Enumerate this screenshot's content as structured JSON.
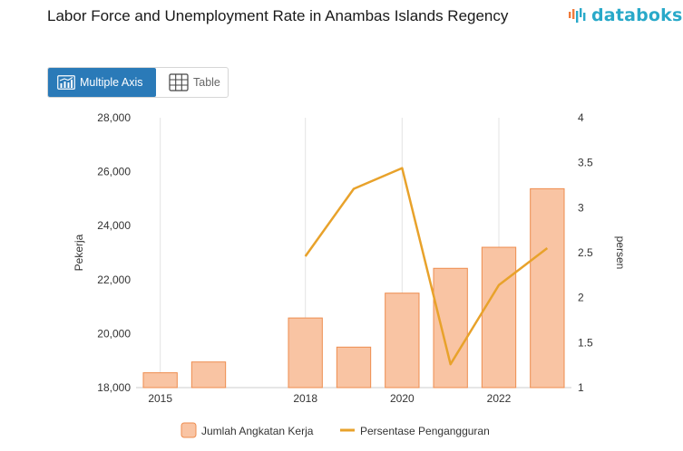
{
  "header": {
    "title": "Labor Force and Unemployment Rate in Anambas Islands Regency",
    "logo_text": "databoks"
  },
  "view_toggle": {
    "multiple_axis_label": "Multiple Axis",
    "table_label": "Table",
    "active": "multiple_axis"
  },
  "colors": {
    "bar_fill": "#f9c4a3",
    "bar_stroke": "#ee8d4f",
    "line": "#e8a22b",
    "grid": "#e3e3e3",
    "accent": "#2a7ab8",
    "logo": "#29a9c9"
  },
  "chart_data": {
    "type": "bar",
    "categories": [
      "2015",
      "2016",
      "2017",
      "2018",
      "2019",
      "2020",
      "2021",
      "2022",
      "2023"
    ],
    "x_tick_labels": [
      "2015",
      "2018",
      "2020",
      "2022"
    ],
    "series": [
      {
        "name": "Jumlah Angkatan Kerja",
        "type": "bar",
        "axis": "left",
        "x": [
          2015,
          2016,
          2018,
          2019,
          2020,
          2021,
          2022,
          2023
        ],
        "values": [
          18550,
          18950,
          20580,
          19500,
          21500,
          22420,
          23200,
          25370
        ]
      },
      {
        "name": "Persentase Pengangguran",
        "type": "line",
        "axis": "right",
        "x": [
          2018,
          2019,
          2020,
          2021,
          2022,
          2023
        ],
        "values": [
          2.46,
          3.21,
          3.44,
          1.26,
          2.14,
          2.55
        ]
      }
    ],
    "ylabel_left": "Pekerja",
    "ylabel_right": "persen",
    "ylim_left": [
      18000,
      28000
    ],
    "yticks_left": [
      "18,000",
      "20,000",
      "22,000",
      "24,000",
      "26,000",
      "28,000"
    ],
    "ylim_right": [
      1,
      4
    ],
    "yticks_right": [
      "1",
      "1.5",
      "2",
      "2.5",
      "3",
      "3.5",
      "4"
    ],
    "xlim": [
      2014.5,
      2023.5
    ],
    "grid": "vertical",
    "legend_position": "bottom-center"
  }
}
